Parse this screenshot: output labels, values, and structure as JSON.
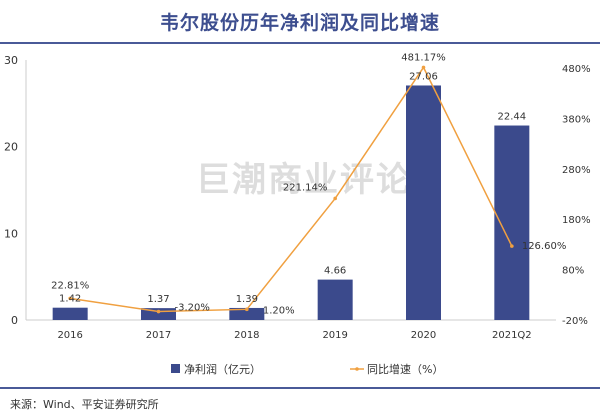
{
  "title": "韦尔股份历年净利润及同比增速",
  "watermark": "巨潮商业评论",
  "source": "来源：Wind、平安证券研究所",
  "colors": {
    "bar": "#3b4a8c",
    "line": "#f0a040",
    "rule": "#4a5a98"
  },
  "chart_data": {
    "type": "bar+line",
    "title": "韦尔股份历年净利润及同比增速",
    "categories": [
      "2016",
      "2017",
      "2018",
      "2019",
      "2020",
      "2021Q2"
    ],
    "series": [
      {
        "name": "净利润（亿元）",
        "type": "bar",
        "axis": "left",
        "values": [
          1.42,
          1.37,
          1.39,
          4.66,
          27.06,
          22.44
        ],
        "labels": [
          "1.42",
          "1.37",
          "1.39",
          "4.66",
          "27.06",
          "22.44"
        ]
      },
      {
        "name": "同比增速（%）",
        "type": "line",
        "axis": "right",
        "values": [
          22.81,
          -3.2,
          1.2,
          221.14,
          481.17,
          126.6
        ],
        "labels": [
          "22.81%",
          "-3.20%",
          "1.20%",
          "221.14%",
          "481.17%",
          "126.60%"
        ]
      }
    ],
    "left_axis": {
      "ylim": [
        0,
        30
      ],
      "ticks": [
        "0",
        "10",
        "20",
        "30"
      ]
    },
    "right_axis": {
      "ylim": [
        -20,
        480
      ],
      "ticks": [
        "-20%",
        "80%",
        "180%",
        "280%",
        "380%",
        "480%"
      ]
    },
    "legend": "bottom-center"
  }
}
